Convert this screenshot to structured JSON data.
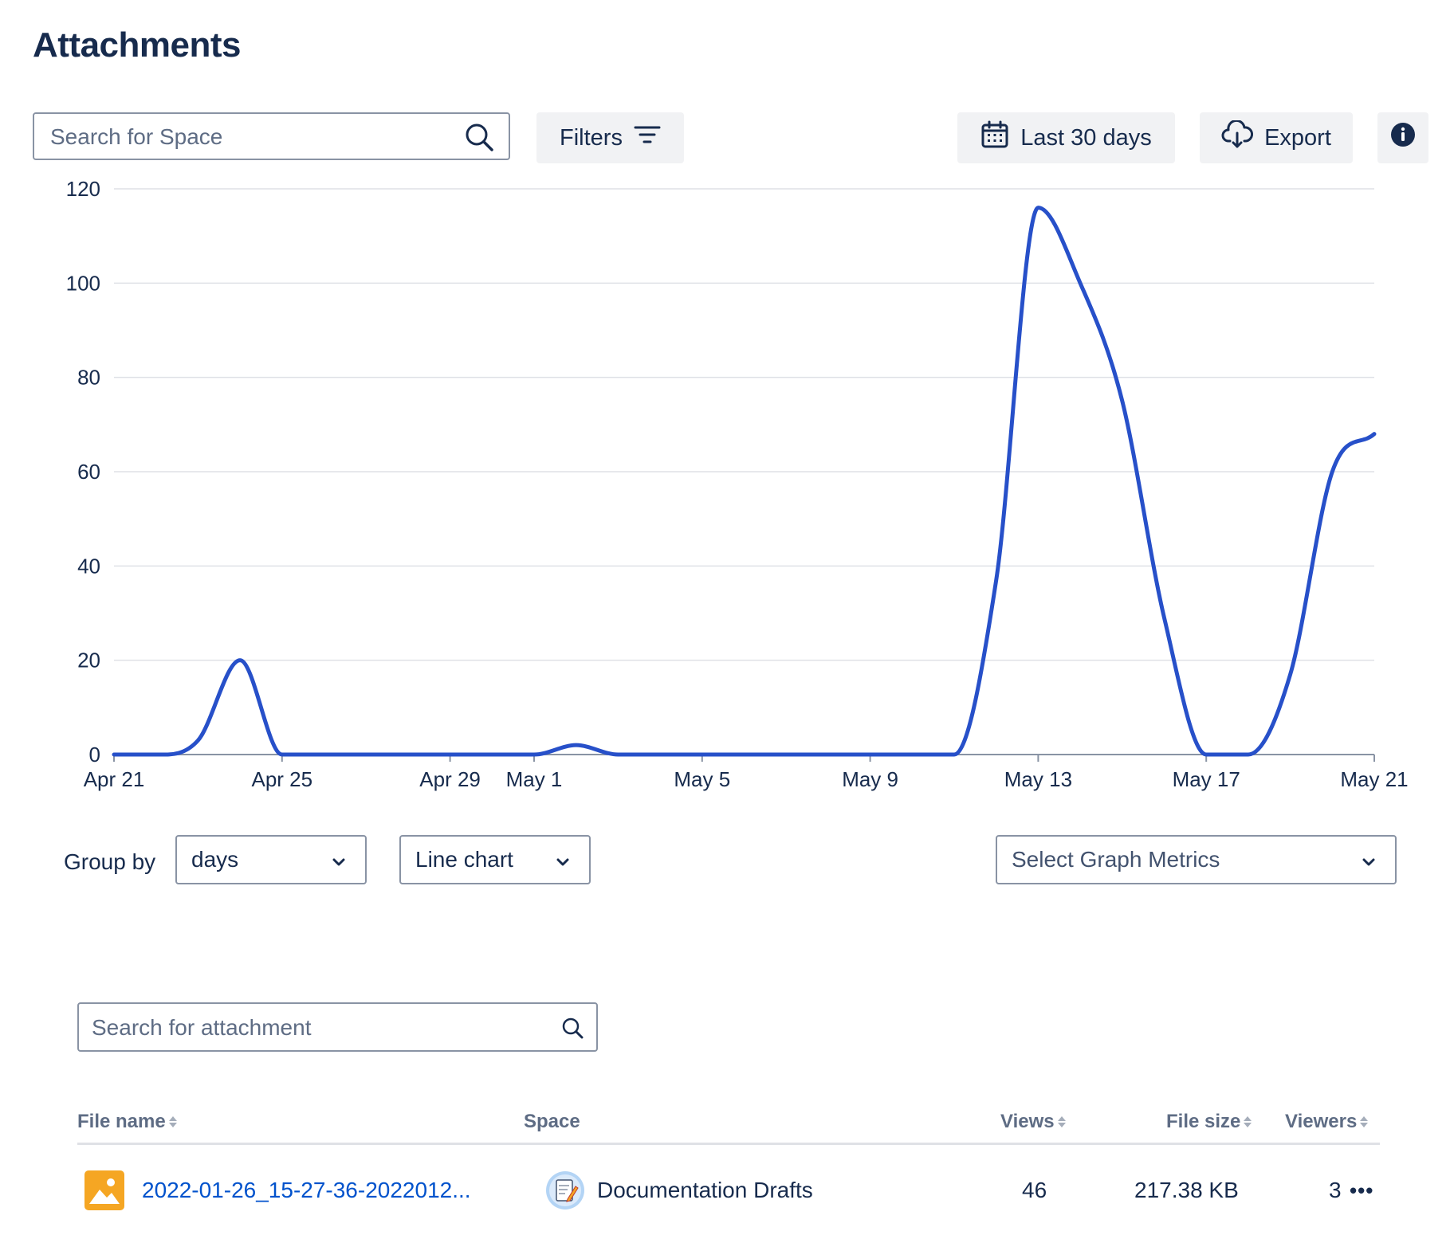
{
  "page": {
    "title": "Attachments"
  },
  "toolbar": {
    "search_placeholder": "Search for Space",
    "filters_label": "Filters",
    "date_range_label": "Last 30 days",
    "export_label": "Export"
  },
  "icons": {
    "search": "search-icon",
    "filter": "filter-icon",
    "calendar": "calendar-icon",
    "export": "cloud-download-icon",
    "info": "info-icon",
    "chevron": "chevron-down-icon",
    "image": "image-file-icon",
    "space_avatar": "notepad-pencil-icon",
    "more": "more-horizontal-icon"
  },
  "colors": {
    "line": "#2750c9",
    "accent": "#0052cc",
    "grid": "#dfe1e6",
    "text": "#172b4d",
    "file_icon": "#f5a623"
  },
  "chart_data": {
    "type": "line",
    "x": [
      "Apr 21",
      "Apr 22",
      "Apr 23",
      "Apr 24",
      "Apr 25",
      "Apr 26",
      "Apr 27",
      "Apr 28",
      "Apr 29",
      "Apr 30",
      "May 1",
      "May 2",
      "May 3",
      "May 4",
      "May 5",
      "May 6",
      "May 7",
      "May 8",
      "May 9",
      "May 10",
      "May 11",
      "May 12",
      "May 13",
      "May 14",
      "May 15",
      "May 16",
      "May 17",
      "May 18",
      "May 19",
      "May 20",
      "May 21"
    ],
    "series": [
      {
        "values": [
          0,
          0,
          3,
          20,
          0,
          0,
          0,
          0,
          0,
          0,
          0,
          2,
          0,
          0,
          0,
          0,
          0,
          0,
          0,
          0,
          0,
          37,
          116,
          100,
          75,
          29,
          0,
          0,
          17,
          60,
          68
        ]
      }
    ],
    "x_tick_labels": [
      "Apr 21",
      "Apr 25",
      "Apr 29",
      "May 1",
      "May 5",
      "May 9",
      "May 13",
      "May 17",
      "May 21"
    ],
    "y_ticks": [
      0,
      20,
      40,
      60,
      80,
      100,
      120
    ],
    "ylim": [
      0,
      120
    ],
    "grid": true,
    "legend": "none",
    "xlabel": "",
    "ylabel": "",
    "title": ""
  },
  "controls": {
    "group_by_label": "Group by",
    "group_by_value": "days",
    "chart_type_value": "Line chart",
    "metrics_placeholder": "Select Graph Metrics"
  },
  "attachments": {
    "search_placeholder": "Search for attachment",
    "columns": {
      "file_name": "File name",
      "space": "Space",
      "views": "Views",
      "file_size": "File size",
      "viewers": "Viewers"
    },
    "rows": [
      {
        "file_name": "2022-01-26_15-27-36-2022012...",
        "space": "Documentation Drafts",
        "views": "46",
        "file_size": "217.38 KB",
        "viewers": "3"
      }
    ]
  }
}
